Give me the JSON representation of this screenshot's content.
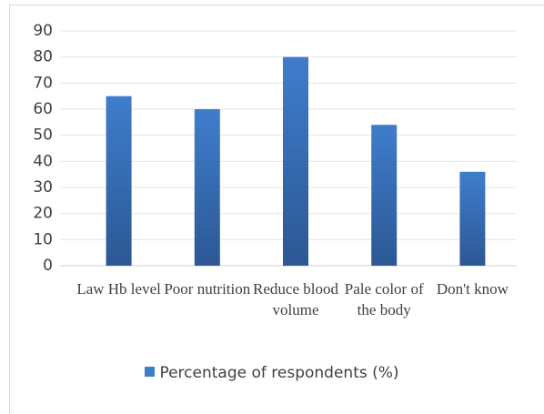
{
  "chart_data": {
    "type": "bar",
    "categories": [
      "Law Hb level",
      "Poor nutrition",
      "Reduce blood volume",
      "Pale color of the body",
      "Don't know"
    ],
    "series": [
      {
        "name": "Percentage of respondents (%)",
        "color": "#3f7dcc",
        "values": [
          65,
          60,
          80,
          54,
          36
        ]
      }
    ],
    "ylim": [
      0,
      90
    ],
    "yticks": [
      0,
      10,
      20,
      30,
      40,
      50,
      60,
      70,
      80,
      90
    ],
    "grid": true
  }
}
